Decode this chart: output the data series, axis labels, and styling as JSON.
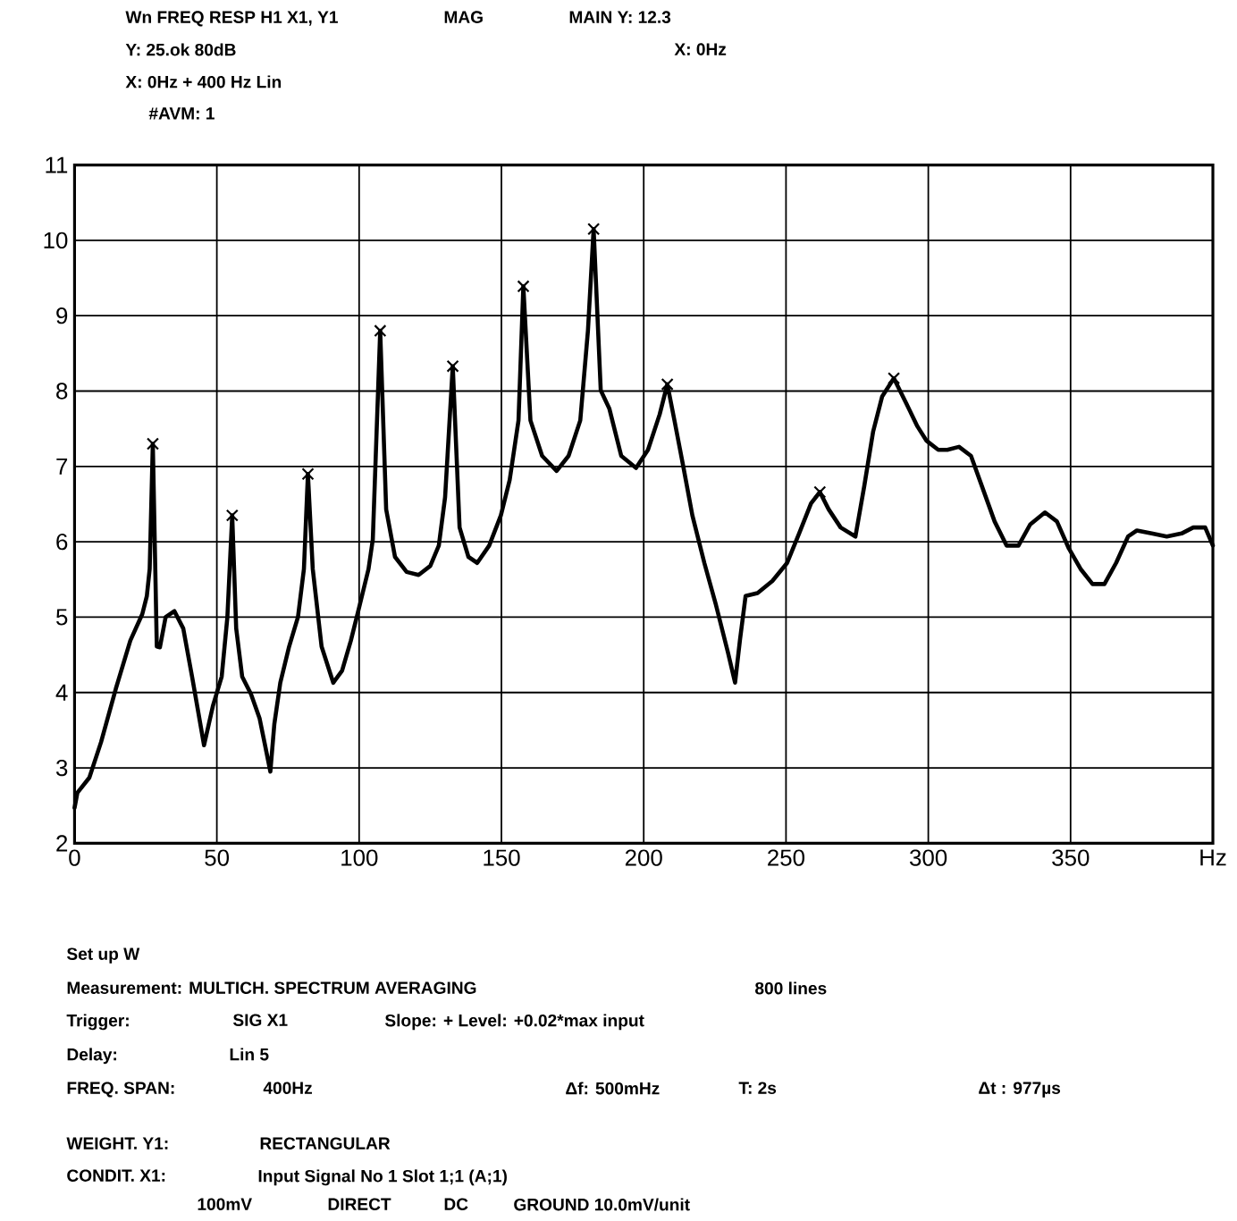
{
  "chart_data": {
    "type": "line",
    "xlim": [
      0,
      400
    ],
    "ylim": [
      2,
      11
    ],
    "xticks": [
      0,
      50,
      100,
      150,
      200,
      250,
      300,
      350,
      {
        "value": 400,
        "label": "Hz"
      }
    ],
    "yticks": [
      2,
      3,
      4,
      5,
      6,
      7,
      8,
      9,
      10,
      11
    ],
    "grid": true,
    "series": [
      {
        "color": "#000000",
        "marker": "none",
        "x": [
          0,
          1,
          5.2,
          9.3,
          14.5,
          19.6,
          23.8,
          25.4,
          26.4,
          27.5,
          28.9,
          30,
          32,
          35.1,
          38.2,
          41.3,
          45.5,
          48.6,
          51.7,
          53.7,
          55.4,
          56.8,
          58.9,
          62,
          65,
          67.1,
          68.8,
          70.2,
          72.3,
          75.4,
          78.5,
          80.6,
          82,
          83.7,
          86.8,
          90.9,
          94,
          97.1,
          100.2,
          103.3,
          104.8,
          107.4,
          109.5,
          112.6,
          116.7,
          120.9,
          125,
          128,
          130.2,
          132.9,
          135.3,
          138.4,
          141.5,
          145.7,
          149.8,
          152.9,
          156,
          157.7,
          160.2,
          164.3,
          169.4,
          173.6,
          177.7,
          180.4,
          182.4,
          184.9,
          187.9,
          192.1,
          197.3,
          201.5,
          205.6,
          208.3,
          210.8,
          214,
          217.1,
          221.3,
          225.4,
          229.6,
          232.1,
          233.8,
          235.8,
          240,
          245.2,
          250.4,
          254.6,
          258.8,
          261.9,
          265,
          269.2,
          274.4,
          277.5,
          280.6,
          283.8,
          287.9,
          292.1,
          296.2,
          299.4,
          303.5,
          306.7,
          310.8,
          315,
          319.2,
          323.3,
          327.5,
          331.7,
          335.8,
          341,
          345.2,
          349.4,
          353.5,
          357.7,
          361.9,
          366,
          370.2,
          373.3,
          378.5,
          383.8,
          389,
          393.1,
          397.3,
          400
        ],
        "values": [
          2.47,
          2.67,
          2.87,
          3.34,
          4.05,
          4.69,
          5.04,
          5.28,
          5.64,
          7.3,
          4.61,
          4.6,
          5.0,
          5.08,
          4.85,
          4.21,
          3.3,
          3.82,
          4.21,
          5.0,
          6.35,
          4.85,
          4.21,
          3.98,
          3.66,
          3.27,
          2.95,
          3.58,
          4.13,
          4.61,
          5.0,
          5.64,
          6.9,
          5.64,
          4.61,
          4.13,
          4.29,
          4.69,
          5.16,
          5.64,
          6.03,
          8.8,
          6.43,
          5.8,
          5.6,
          5.56,
          5.68,
          5.95,
          6.59,
          8.33,
          6.19,
          5.8,
          5.72,
          5.95,
          6.35,
          6.82,
          7.61,
          9.39,
          7.61,
          7.14,
          6.94,
          7.14,
          7.61,
          8.8,
          10.15,
          8.01,
          7.77,
          7.14,
          6.98,
          7.22,
          7.69,
          8.09,
          7.61,
          6.98,
          6.35,
          5.72,
          5.16,
          4.53,
          4.13,
          4.69,
          5.28,
          5.32,
          5.48,
          5.72,
          6.11,
          6.51,
          6.66,
          6.43,
          6.19,
          6.07,
          6.74,
          7.46,
          7.93,
          8.17,
          7.85,
          7.53,
          7.34,
          7.22,
          7.22,
          7.26,
          7.14,
          6.7,
          6.27,
          5.95,
          5.95,
          6.23,
          6.39,
          6.27,
          5.91,
          5.64,
          5.44,
          5.44,
          5.72,
          6.07,
          6.15,
          6.11,
          6.07,
          6.11,
          6.19,
          6.19,
          5.95
        ]
      },
      {
        "type": "scatter",
        "color": "#000000",
        "marker": "cross",
        "x": [
          27.5,
          55.4,
          82,
          107.4,
          132.9,
          157.7,
          182.4,
          208.3,
          261.9,
          287.9
        ],
        "values": [
          7.3,
          6.35,
          6.9,
          8.8,
          8.33,
          9.39,
          10.15,
          8.09,
          6.66,
          8.17
        ]
      }
    ],
    "annotations": [
      "Wn   FREQ RESP H1 X1, Y1",
      "MAG",
      "MAIN  Y:  12.3",
      "Y:  25.ok   80dB",
      "X:  0Hz",
      "X:  0Hz  +  400 Hz  Lin",
      "#AVM:  1",
      "Set  up  W",
      "Measurement:  MULTICH.  SPECTRUM AVERAGING",
      "800 lines",
      "Trigger:",
      "SIG  X1",
      "Slope: +   Level:  +0.02*max input",
      "Delay:",
      "Lin   5",
      "FREQ.  SPAN:",
      "400Hz",
      "Δf: 500mHz",
      "T: 2s",
      "Δt : 977µs",
      "WEIGHT.  Y1:",
      "RECTANGULAR",
      "CONDIT.  X1:",
      "Input Signal No  1  Slot  1;1  (A;1)",
      "100mV",
      "DIRECT",
      "DC",
      "GROUND  10.0mV/unit"
    ]
  }
}
